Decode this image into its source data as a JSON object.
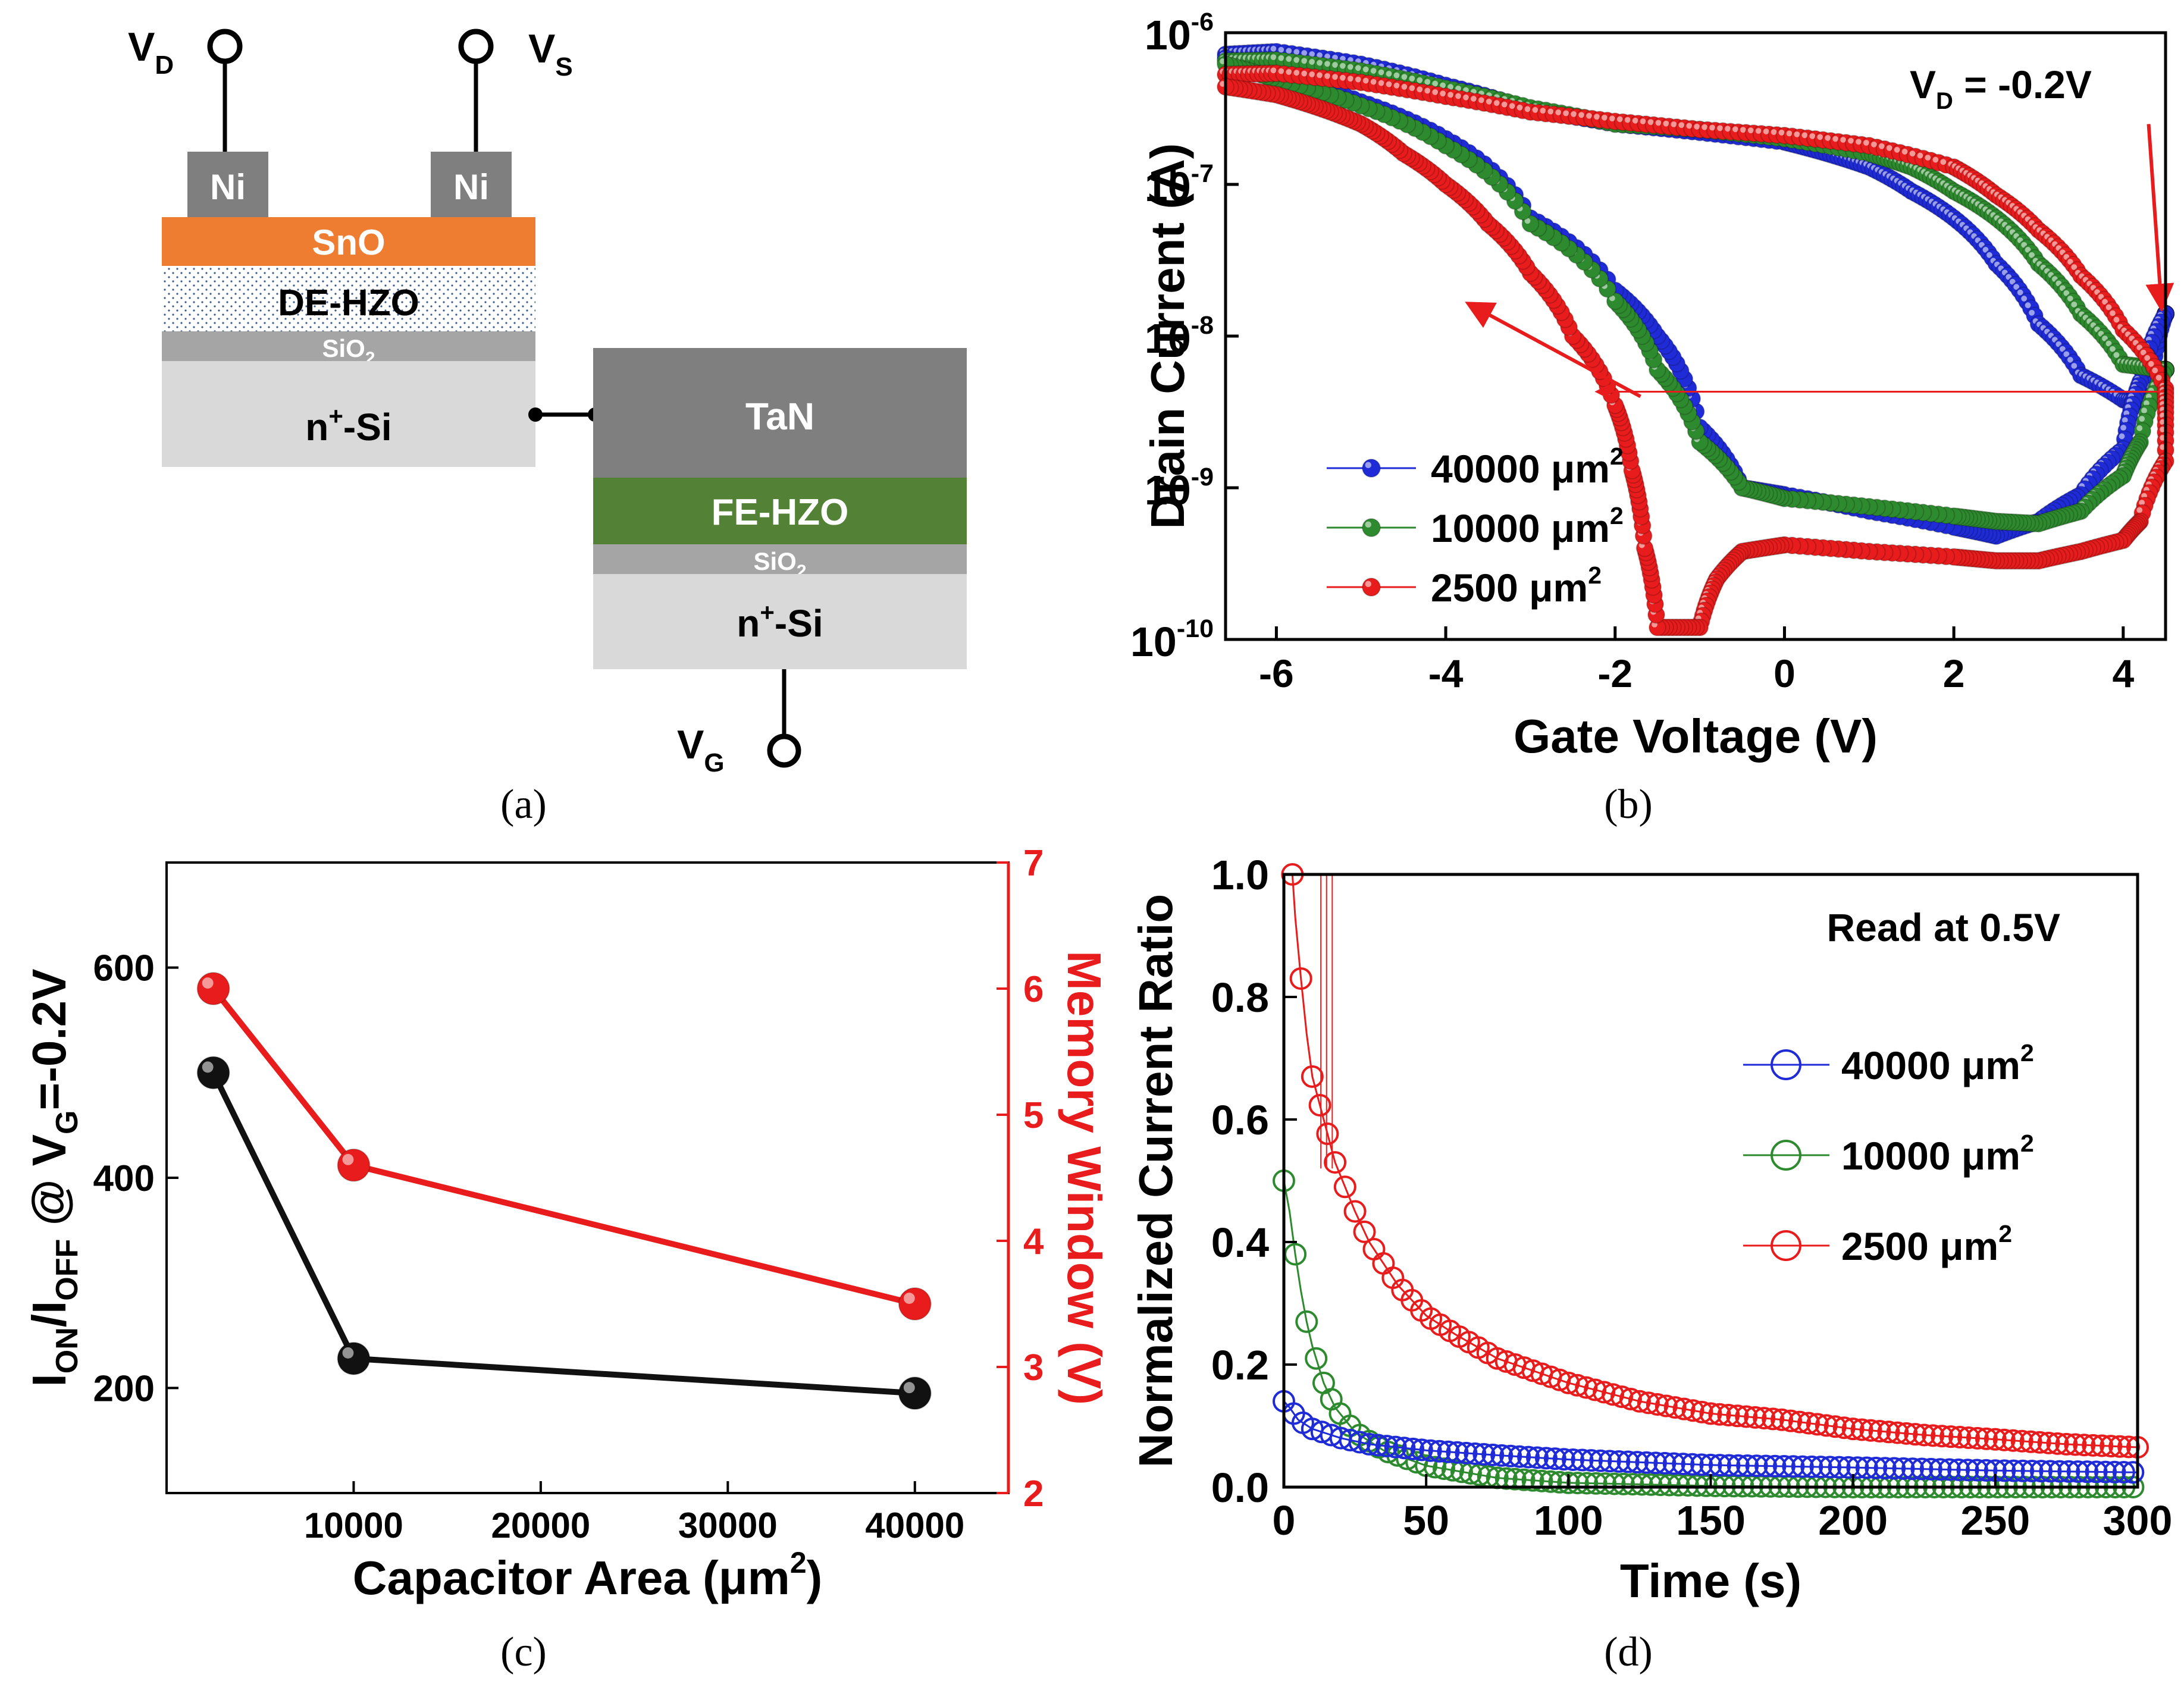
{
  "colors": {
    "blue": "#1f2bd6",
    "green": "#2e8a2e",
    "red": "#e81c1c",
    "black": "#111111",
    "snO": "#ef7d31",
    "ni": "#7f7f7f",
    "tan": "#7f7f7f",
    "feHzo": "#538135",
    "sio2": "#a5a5a5",
    "si": "#d9d9d9"
  },
  "panel_a": {
    "caption": "(a)",
    "terminals": {
      "vd": "V",
      "vd_sub": "D",
      "vs": "V",
      "vs_sub": "S",
      "vg": "V",
      "vg_sub": "G"
    },
    "layers": {
      "ni_left": "Ni",
      "ni_right": "Ni",
      "sno": "SnO",
      "de_hzo": "DE-HZO",
      "sio2_top": "SiO",
      "sio2_top_sub": "2",
      "si_top": "n",
      "si_top_sup": "+",
      "si_top_rest": "-Si",
      "tan": "TaN",
      "fe_hzo": "FE-HZO",
      "sio2_bottom": "SiO",
      "sio2_bottom_sub": "2",
      "si_bottom": "n",
      "si_bottom_sup": "+",
      "si_bottom_rest": "-Si"
    }
  },
  "panel_b": {
    "caption": "(b)",
    "annotation": "V",
    "annotation_sub": "D",
    "annotation_rest": " = -0.2V"
  },
  "panel_c": {
    "caption": "(c)",
    "ylabel_right": "Memory Window (V)"
  },
  "panel_d": {
    "caption": "(d)",
    "annotation": "Read at 0.5V"
  },
  "chart_data": [
    {
      "id": "b",
      "type": "scatter",
      "xlabel": "Gate Voltage (V)",
      "ylabel": "Drain Current (A)",
      "xlim": [
        -6.6,
        4.5
      ],
      "ylim": [
        1e-10,
        1e-06
      ],
      "y_scale": "log",
      "x_ticks": [
        -6,
        -4,
        -2,
        0,
        2,
        4
      ],
      "y_ticks": [
        1e-10,
        1e-09,
        1e-08,
        1e-07,
        1e-06
      ],
      "y_tick_labels": [
        {
          "base": "10",
          "exp": "-10"
        },
        {
          "base": "10",
          "exp": "-9"
        },
        {
          "base": "10",
          "exp": "-8"
        },
        {
          "base": "10",
          "exp": "-7"
        },
        {
          "base": "10",
          "exp": "-6"
        }
      ],
      "legend_position": "bottom-left",
      "series": [
        {
          "name": "40000 μm2",
          "legend_text": "40000 μm",
          "legend_sup": "2",
          "color": "#1f2bd6",
          "forward": [
            [
              -6.6,
              7.2e-07
            ],
            [
              -6,
              7.5e-07
            ],
            [
              -5,
              6.2e-07
            ],
            [
              -4,
              4.5e-07
            ],
            [
              -3,
              3.1e-07
            ],
            [
              -2,
              2.5e-07
            ],
            [
              -1,
              2.2e-07
            ],
            [
              0,
              1.9e-07
            ],
            [
              0.5,
              1.6e-07
            ],
            [
              1,
              1.3e-07
            ],
            [
              1.5,
              9e-08
            ],
            [
              2,
              6e-08
            ],
            [
              2.5,
              3e-08
            ],
            [
              3,
              1.2e-08
            ],
            [
              3.5,
              5.5e-09
            ],
            [
              4,
              3.8e-09
            ],
            [
              4.3,
              3.6e-09
            ],
            [
              4.5,
              1.4e-08
            ]
          ],
          "reverse": [
            [
              4.5,
              1.4e-08
            ],
            [
              4.2,
              5e-09
            ],
            [
              4,
              1.8e-09
            ],
            [
              3.5,
              9e-10
            ],
            [
              3,
              6e-10
            ],
            [
              2.5,
              4.8e-10
            ],
            [
              2,
              5.5e-10
            ],
            [
              1,
              7e-10
            ],
            [
              0,
              9e-10
            ],
            [
              -0.5,
              1e-09
            ],
            [
              -1,
              2.5e-09
            ],
            [
              -1.5,
              1e-08
            ],
            [
              -2,
              2e-08
            ],
            [
              -3,
              6e-08
            ],
            [
              -4,
              2e-07
            ],
            [
              -5,
              3.5e-07
            ],
            [
              -6,
              5.2e-07
            ],
            [
              -6.6,
              6.8e-07
            ]
          ]
        },
        {
          "name": "10000 μm2",
          "legend_text": "10000 μm",
          "legend_sup": "2",
          "color": "#2e8a2e",
          "forward": [
            [
              -6.6,
              6.5e-07
            ],
            [
              -6,
              6.6e-07
            ],
            [
              -5,
              5.6e-07
            ],
            [
              -4,
              4.3e-07
            ],
            [
              -3,
              3.2e-07
            ],
            [
              -2,
              2.5e-07
            ],
            [
              -1,
              2.3e-07
            ],
            [
              0,
              2e-07
            ],
            [
              1,
              1.6e-07
            ],
            [
              1.5,
              1.3e-07
            ],
            [
              2,
              9e-08
            ],
            [
              2.5,
              6e-08
            ],
            [
              3,
              3e-08
            ],
            [
              3.5,
              1.4e-08
            ],
            [
              4,
              6.5e-09
            ],
            [
              4.5,
              6e-09
            ]
          ],
          "reverse": [
            [
              4.5,
              6e-09
            ],
            [
              4.2,
              2e-09
            ],
            [
              4,
              1.2e-09
            ],
            [
              3.5,
              7e-10
            ],
            [
              3,
              5.8e-10
            ],
            [
              2.5,
              6e-10
            ],
            [
              2,
              6.5e-10
            ],
            [
              1,
              7.5e-10
            ],
            [
              0,
              8.5e-10
            ],
            [
              -0.5,
              1e-09
            ],
            [
              -1,
              2e-09
            ],
            [
              -1.5,
              6e-09
            ],
            [
              -2,
              1.7e-08
            ],
            [
              -3,
              5.5e-08
            ],
            [
              -4,
              1.8e-07
            ],
            [
              -5,
              3.3e-07
            ],
            [
              -6,
              4.9e-07
            ],
            [
              -6.6,
              6.2e-07
            ]
          ]
        },
        {
          "name": "2500 μm2",
          "legend_text": "2500 μm",
          "legend_sup": "2",
          "color": "#e81c1c",
          "forward": [
            [
              -6.6,
              5.3e-07
            ],
            [
              -6,
              5.4e-07
            ],
            [
              -5,
              4.7e-07
            ],
            [
              -4,
              3.8e-07
            ],
            [
              -3,
              3e-07
            ],
            [
              -2,
              2.6e-07
            ],
            [
              -1,
              2.3e-07
            ],
            [
              0,
              2.1e-07
            ],
            [
              1,
              1.8e-07
            ],
            [
              2,
              1.3e-07
            ],
            [
              2.5,
              8.5e-08
            ],
            [
              3,
              5e-08
            ],
            [
              3.5,
              2.5e-08
            ],
            [
              4,
              1.1e-08
            ],
            [
              4.5,
              4.5e-09
            ]
          ],
          "reverse": [
            [
              4.5,
              1.5e-09
            ],
            [
              4.2,
              6e-10
            ],
            [
              4,
              4.5e-10
            ],
            [
              3.5,
              3.8e-10
            ],
            [
              3,
              3.3e-10
            ],
            [
              2.5,
              3.3e-10
            ],
            [
              2,
              3.5e-10
            ],
            [
              1,
              3.8e-10
            ],
            [
              0,
              4.2e-10
            ],
            [
              -0.5,
              3.8e-10
            ],
            [
              -0.8,
              2.5e-10
            ],
            [
              -1,
              1.2e-10
            ],
            [
              -1.5,
              1.2e-10
            ],
            [
              -1.65,
              4e-10
            ],
            [
              -1.8,
              1.3e-09
            ],
            [
              -2,
              3.5e-09
            ],
            [
              -2.5,
              1e-08
            ],
            [
              -3,
              2.6e-08
            ],
            [
              -3.5,
              5.5e-08
            ],
            [
              -4,
              1e-07
            ],
            [
              -4.5,
              1.6e-07
            ],
            [
              -5,
              2.5e-07
            ],
            [
              -5.5,
              3.2e-07
            ],
            [
              -6,
              3.9e-07
            ],
            [
              -6.6,
              4.4e-07
            ]
          ]
        }
      ],
      "arrows": [
        {
          "from": [
            4.3,
            2.5e-07
          ],
          "to": [
            4.45,
            1.6e-08
          ]
        },
        {
          "from": [
            -1.7,
            4e-09
          ],
          "to": [
            -3.7,
            1.6e-08
          ]
        },
        {
          "from": [
            4.5,
            4.3e-09
          ],
          "to": [
            -2.2,
            4.3e-09
          ]
        }
      ]
    },
    {
      "id": "c",
      "type": "line",
      "xlabel": "Capacitor Area (μm2)",
      "xlabel_text": "Capacitor Area (μm",
      "xlabel_sup": "2",
      "xlabel_close": ")",
      "ylabel_parts": [
        {
          "t": "I"
        },
        {
          "t": "ON",
          "sub": true
        },
        {
          "t": "/I"
        },
        {
          "t": "OFF",
          "sub": true
        },
        {
          "t": " @ V"
        },
        {
          "t": "G",
          "sub": true
        },
        {
          "t": "=-0.2V"
        }
      ],
      "ylabel_right": "Memory Window (V)",
      "xlim": [
        0,
        45000
      ],
      "ylim_left": [
        100,
        700
      ],
      "ylim_right": [
        2,
        7
      ],
      "x_ticks": [
        10000,
        20000,
        30000,
        40000
      ],
      "y_ticks_left": [
        200,
        400,
        600
      ],
      "y_ticks_right": [
        2,
        3,
        4,
        5,
        6,
        7
      ],
      "series": [
        {
          "name": "ION/IOFF",
          "axis": "left",
          "color": "#111111",
          "x": [
            2500,
            10000,
            40000
          ],
          "y": [
            500,
            228,
            195
          ]
        },
        {
          "name": "Memory Window",
          "axis": "right",
          "color": "#e81c1c",
          "x": [
            2500,
            10000,
            40000
          ],
          "y": [
            6.0,
            4.6,
            3.5
          ]
        }
      ]
    },
    {
      "id": "d",
      "type": "scatter",
      "xlabel": "Time (s)",
      "ylabel": "Normalized Current Ratio",
      "xlim": [
        0,
        300
      ],
      "ylim": [
        0,
        1.0
      ],
      "x_ticks": [
        0,
        50,
        100,
        150,
        200,
        250,
        300
      ],
      "y_ticks": [
        0.0,
        0.2,
        0.4,
        0.6,
        0.8,
        1.0
      ],
      "y_tick_labels": [
        "0.0",
        "0.2",
        "0.4",
        "0.6",
        "0.8",
        "1.0"
      ],
      "legend_position": "right",
      "series": [
        {
          "name": "40000 μm2",
          "legend_text": "40000 μm",
          "legend_sup": "2",
          "color": "#1f2bd6",
          "points": [
            [
              0,
              0.14
            ],
            [
              2,
              0.13
            ],
            [
              5,
              0.11
            ],
            [
              10,
              0.095
            ],
            [
              20,
              0.08
            ],
            [
              30,
              0.07
            ],
            [
              50,
              0.06
            ],
            [
              75,
              0.052
            ],
            [
              100,
              0.045
            ],
            [
              150,
              0.036
            ],
            [
              200,
              0.032
            ],
            [
              250,
              0.027
            ],
            [
              300,
              0.024
            ]
          ]
        },
        {
          "name": "10000 μm2",
          "legend_text": "10000 μm",
          "legend_sup": "2",
          "color": "#2e8a2e",
          "points": [
            [
              0,
              0.5
            ],
            [
              2,
              0.45
            ],
            [
              4,
              0.38
            ],
            [
              6,
              0.32
            ],
            [
              8,
              0.27
            ],
            [
              10,
              0.23
            ],
            [
              14,
              0.17
            ],
            [
              18,
              0.13
            ],
            [
              25,
              0.09
            ],
            [
              35,
              0.06
            ],
            [
              50,
              0.035
            ],
            [
              75,
              0.015
            ],
            [
              100,
              0.007
            ],
            [
              150,
              0.002
            ],
            [
              200,
              0.0
            ],
            [
              300,
              0.0
            ]
          ]
        },
        {
          "name": "2500 μm2",
          "legend_text": "2500 μm",
          "legend_sup": "2",
          "color": "#e81c1c",
          "points": [
            [
              3,
              1.0
            ],
            [
              4,
              0.93
            ],
            [
              6,
              0.83
            ],
            [
              8,
              0.74
            ],
            [
              10,
              0.67
            ],
            [
              14,
              0.6
            ],
            [
              18,
              0.53
            ],
            [
              25,
              0.45
            ],
            [
              30,
              0.4
            ],
            [
              40,
              0.33
            ],
            [
              50,
              0.28
            ],
            [
              60,
              0.25
            ],
            [
              75,
              0.21
            ],
            [
              100,
              0.17
            ],
            [
              125,
              0.14
            ],
            [
              150,
              0.12
            ],
            [
              175,
              0.11
            ],
            [
              200,
              0.095
            ],
            [
              225,
              0.085
            ],
            [
              250,
              0.078
            ],
            [
              275,
              0.07
            ],
            [
              300,
              0.065
            ]
          ]
        }
      ]
    }
  ]
}
